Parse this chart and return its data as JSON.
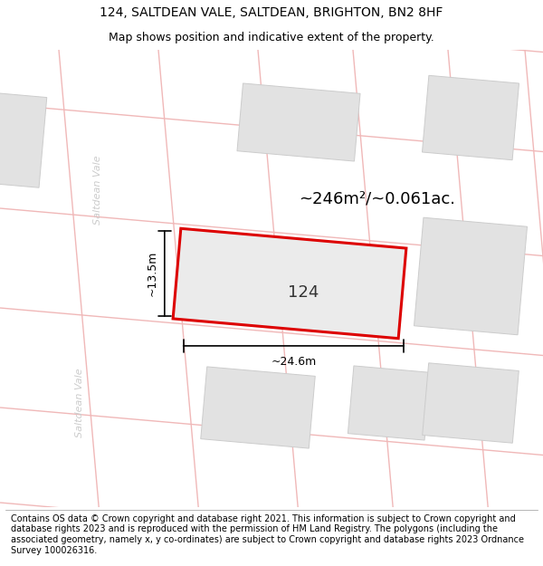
{
  "title_line1": "124, SALTDEAN VALE, SALTDEAN, BRIGHTON, BN2 8HF",
  "title_line2": "Map shows position and indicative extent of the property.",
  "footer_text": "Contains OS data © Crown copyright and database right 2021. This information is subject to Crown copyright and database rights 2023 and is reproduced with the permission of HM Land Registry. The polygons (including the associated geometry, namely x, y co-ordinates) are subject to Crown copyright and database rights 2023 Ordnance Survey 100026316.",
  "area_label": "~246m²/~0.061ac.",
  "width_label": "~24.6m",
  "height_label": "~13.5m",
  "plot_number": "124",
  "bg_color": "#ffffff",
  "map_bg": "#f0f0f0",
  "block_color": "#e2e2e2",
  "road_line_color": "#f0b8b8",
  "grid_line_color": "#d8d8d8",
  "plot_outline_color": "#dd0000",
  "plot_fill_color": "#ebebeb",
  "road_label_color": "#cccccc",
  "title_fontsize": 10,
  "subtitle_fontsize": 9,
  "footer_fontsize": 7,
  "area_fontsize": 13,
  "plot_num_fontsize": 13,
  "dim_fontsize": 9,
  "road_fontsize": 8
}
